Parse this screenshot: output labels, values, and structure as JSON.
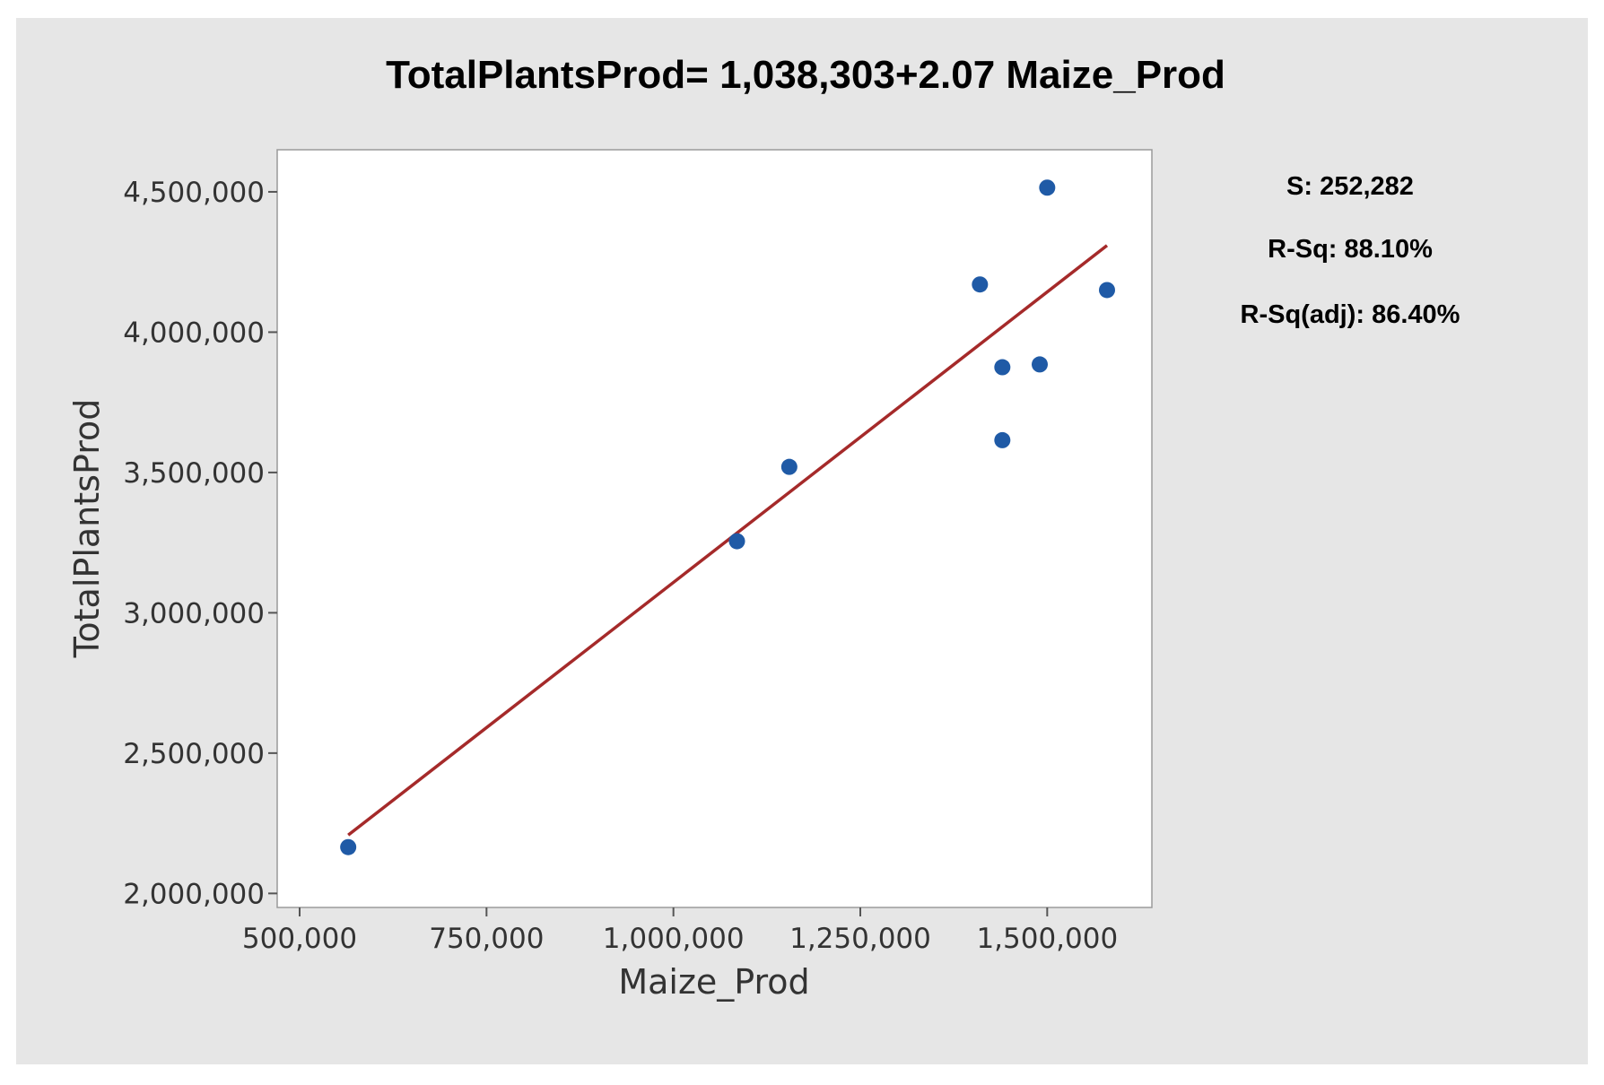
{
  "chart_data": {
    "type": "scatter",
    "title": "TotalPlantsProd= 1,038,303+2.07 Maize_Prod",
    "xlabel": "Maize_Prod",
    "ylabel": "TotalPlantsProd",
    "xlim": [
      470000,
      1640000
    ],
    "ylim": [
      1950000,
      4650000
    ],
    "x_ticks": [
      500000,
      750000,
      1000000,
      1250000,
      1500000
    ],
    "x_tick_labels": [
      "500,000",
      "750,000",
      "1,000,000",
      "1,250,000",
      "1,500,000"
    ],
    "y_ticks": [
      2000000,
      2500000,
      3000000,
      3500000,
      4000000,
      4500000
    ],
    "y_tick_labels": [
      "2,000,000",
      "2,500,000",
      "3,000,000",
      "3,500,000",
      "4,000,000",
      "4,500,000"
    ],
    "grid": false,
    "series": [
      {
        "points": [
          {
            "x": 565000,
            "y": 2165000
          },
          {
            "x": 1085000,
            "y": 3255000
          },
          {
            "x": 1155000,
            "y": 3520000
          },
          {
            "x": 1410000,
            "y": 4170000
          },
          {
            "x": 1440000,
            "y": 3875000
          },
          {
            "x": 1440000,
            "y": 3615000
          },
          {
            "x": 1490000,
            "y": 3885000
          },
          {
            "x": 1500000,
            "y": 4515000
          },
          {
            "x": 1580000,
            "y": 4150000
          }
        ],
        "color": "#1f5aa6"
      }
    ],
    "fit_line": {
      "intercept": 1038303,
      "slope": 2.07,
      "x_range": [
        565000,
        1580000
      ],
      "color": "#a52a2a"
    },
    "stats": {
      "s": "S: 252,282",
      "rsq": "R-Sq: 88.10%",
      "rsq_adj": "R-Sq(adj): 86.40%"
    }
  }
}
